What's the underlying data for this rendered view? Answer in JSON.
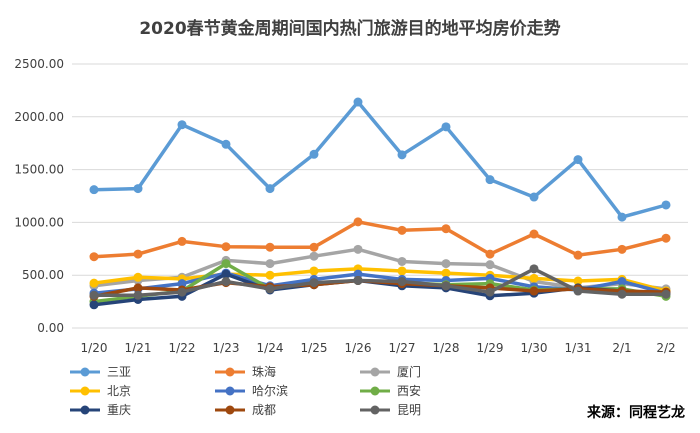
{
  "chart_data": {
    "type": "line",
    "title": "2020春节黄金周期间国内热门旅游目的地平均房价走势",
    "categories": [
      "1/20",
      "1/21",
      "1/22",
      "1/23",
      "1/24",
      "1/25",
      "1/26",
      "1/27",
      "1/28",
      "1/29",
      "1/30",
      "1/31",
      "2/1",
      "2/2"
    ],
    "ylim": [
      0,
      2500
    ],
    "yticks": [
      "0.00",
      "500.00",
      "1000.00",
      "1500.00",
      "2000.00",
      "2500.00"
    ],
    "grid": true,
    "legend_position": "bottom",
    "source": "来源：同程艺龙",
    "series": [
      {
        "name": "三亚",
        "color": "#5b9bd5",
        "values": [
          1310,
          1320,
          1925,
          1740,
          1320,
          1645,
          2140,
          1640,
          1905,
          1405,
          1240,
          1595,
          1050,
          1165
        ]
      },
      {
        "name": "珠海",
        "color": "#ed7d31",
        "values": [
          675,
          700,
          820,
          770,
          765,
          765,
          1005,
          925,
          940,
          700,
          890,
          690,
          745,
          850
        ]
      },
      {
        "name": "厦门",
        "color": "#a5a5a5",
        "values": [
          400,
          450,
          480,
          640,
          610,
          680,
          745,
          630,
          610,
          600,
          440,
          380,
          420,
          370
        ]
      },
      {
        "name": "北京",
        "color": "#ffc000",
        "values": [
          425,
          480,
          465,
          510,
          500,
          540,
          560,
          540,
          520,
          500,
          470,
          445,
          460,
          350
        ]
      },
      {
        "name": "哈尔滨",
        "color": "#4472c4",
        "values": [
          330,
          370,
          420,
          520,
          400,
          460,
          510,
          460,
          450,
          470,
          390,
          360,
          440,
          330
        ]
      },
      {
        "name": "西安",
        "color": "#70ad47",
        "values": [
          250,
          300,
          350,
          610,
          370,
          420,
          450,
          430,
          410,
          420,
          360,
          370,
          370,
          300
        ]
      },
      {
        "name": "重庆",
        "color": "#264478",
        "values": [
          220,
          270,
          300,
          510,
          360,
          410,
          450,
          400,
          380,
          305,
          330,
          380,
          350,
          330
        ]
      },
      {
        "name": "成都",
        "color": "#9e480e",
        "values": [
          300,
          380,
          360,
          430,
          390,
          410,
          450,
          420,
          400,
          380,
          350,
          370,
          350,
          340
        ]
      },
      {
        "name": "昆明",
        "color": "#636363",
        "values": [
          310,
          310,
          340,
          440,
          370,
          430,
          450,
          440,
          400,
          340,
          560,
          350,
          320,
          320
        ]
      }
    ]
  }
}
